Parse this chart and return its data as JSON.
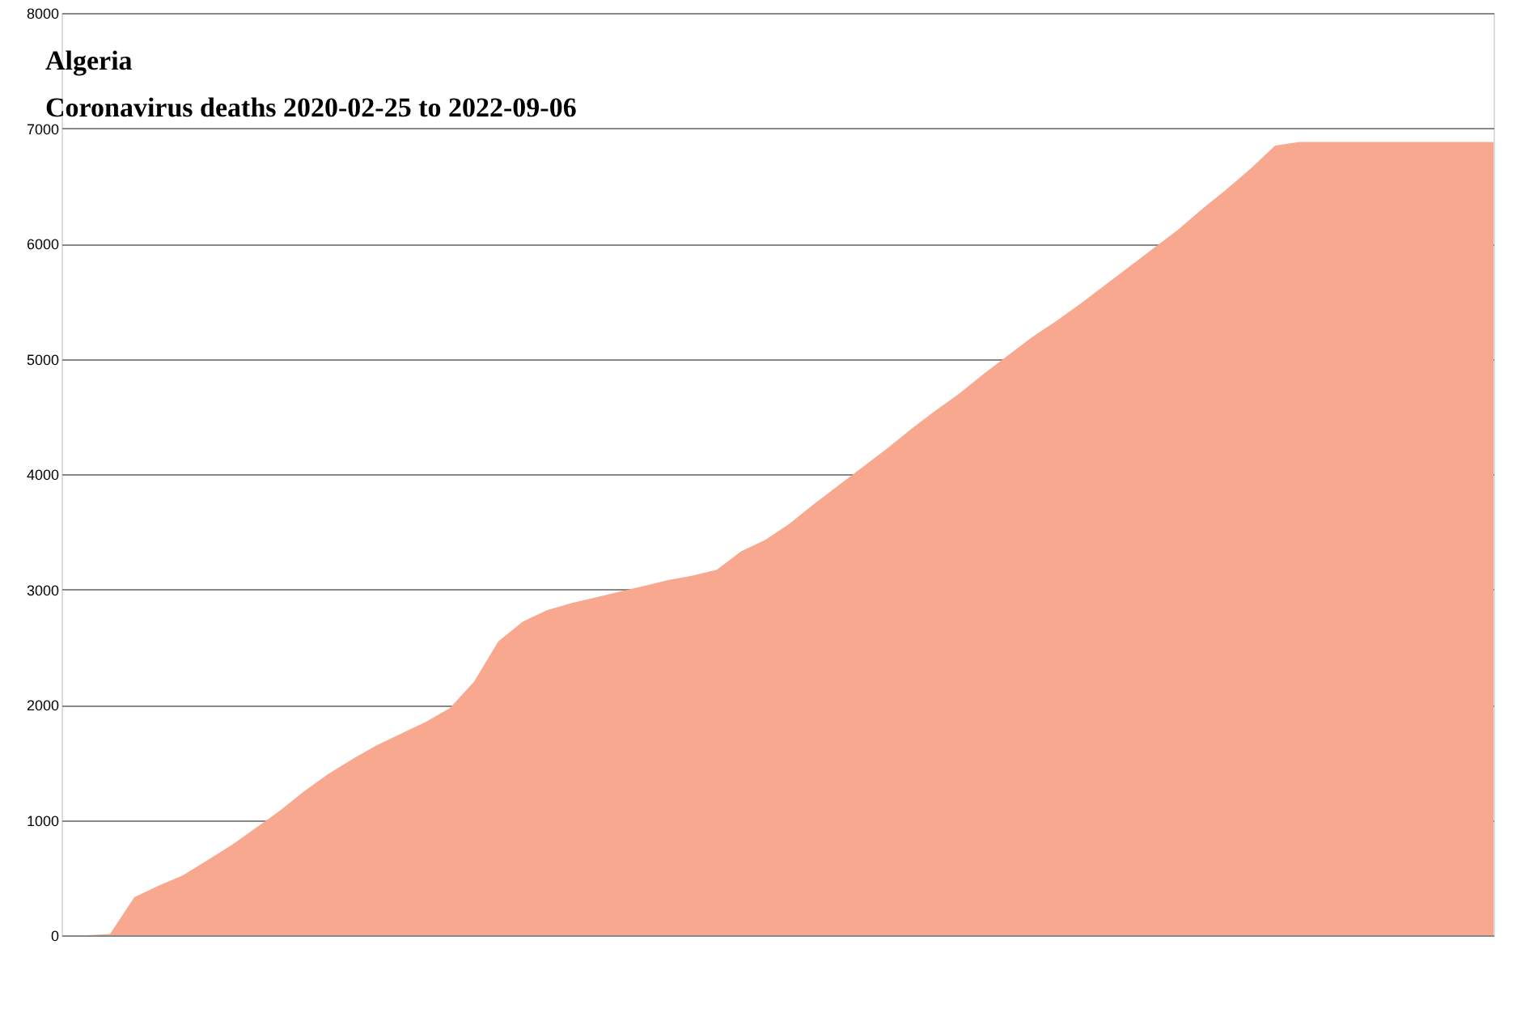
{
  "chart_data": {
    "type": "area",
    "title": "Algeria",
    "subtitle": "Coronavirus deaths 2020-02-25 to 2022-09-06",
    "categories": [
      null,
      null,
      null,
      null,
      null,
      null,
      null,
      null,
      null,
      null,
      null,
      null,
      null,
      null,
      null,
      null,
      null,
      null,
      null,
      null,
      null,
      null,
      null,
      null,
      null,
      null,
      null,
      null,
      null,
      null,
      null,
      null,
      null,
      null,
      null,
      null,
      null,
      null,
      null,
      null,
      null,
      null,
      null,
      null,
      null,
      null,
      null,
      null,
      null,
      null,
      null,
      null,
      null,
      null,
      null,
      null,
      null,
      null,
      null,
      null
    ],
    "values": [
      0,
      0,
      10,
      330,
      430,
      520,
      650,
      780,
      930,
      1080,
      1250,
      1400,
      1530,
      1650,
      1750,
      1850,
      1970,
      2200,
      2550,
      2720,
      2820,
      2880,
      2930,
      2980,
      3030,
      3080,
      3120,
      3170,
      3330,
      3430,
      3570,
      3740,
      3900,
      4060,
      4220,
      4390,
      4550,
      4700,
      4870,
      5030,
      5190,
      5330,
      5480,
      5640,
      5800,
      5960,
      6120,
      6300,
      6470,
      6650,
      6850,
      6880,
      6880,
      6880,
      6880,
      6880,
      6880,
      6880,
      6880,
      6880
    ],
    "color": "#f8a88e",
    "ylim": [
      0,
      8000
    ],
    "yticks": [
      0,
      1000,
      2000,
      3000,
      4000,
      5000,
      6000,
      7000,
      8000
    ],
    "grid": "y",
    "tick_labels": "y"
  }
}
